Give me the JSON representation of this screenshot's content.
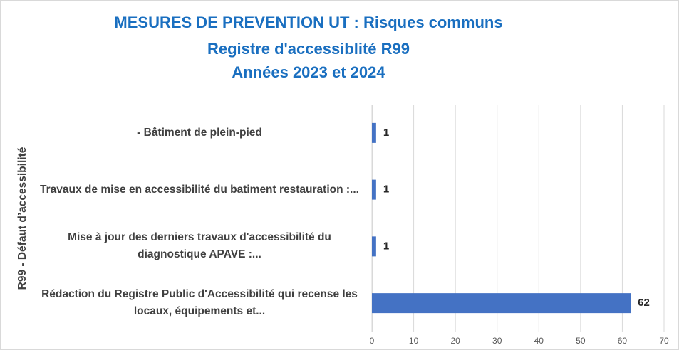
{
  "chart_data": {
    "type": "bar",
    "orientation": "horizontal",
    "title": [
      "MESURES DE PREVENTION UT : Risques communs",
      "Registre d'accessiblité R99",
      "Années 2023 et 2024"
    ],
    "y_label": "R99 - Défaut d’accessibilité",
    "categories": [
      "- Bâtiment de plein-pied",
      "Travaux de mise en accessibilité du batiment restauration :...",
      "Mise à jour des derniers travaux d'accessibilité du diagnostique APAVE :...",
      "Rédaction du Registre Public d'Accessibilité qui recense les locaux, équipements et..."
    ],
    "values": [
      1,
      1,
      1,
      62
    ],
    "color": "#4472c4",
    "xlim": [
      0,
      70
    ],
    "xticks": [
      0,
      10,
      20,
      30,
      40,
      50,
      60,
      70
    ],
    "grid": true
  }
}
